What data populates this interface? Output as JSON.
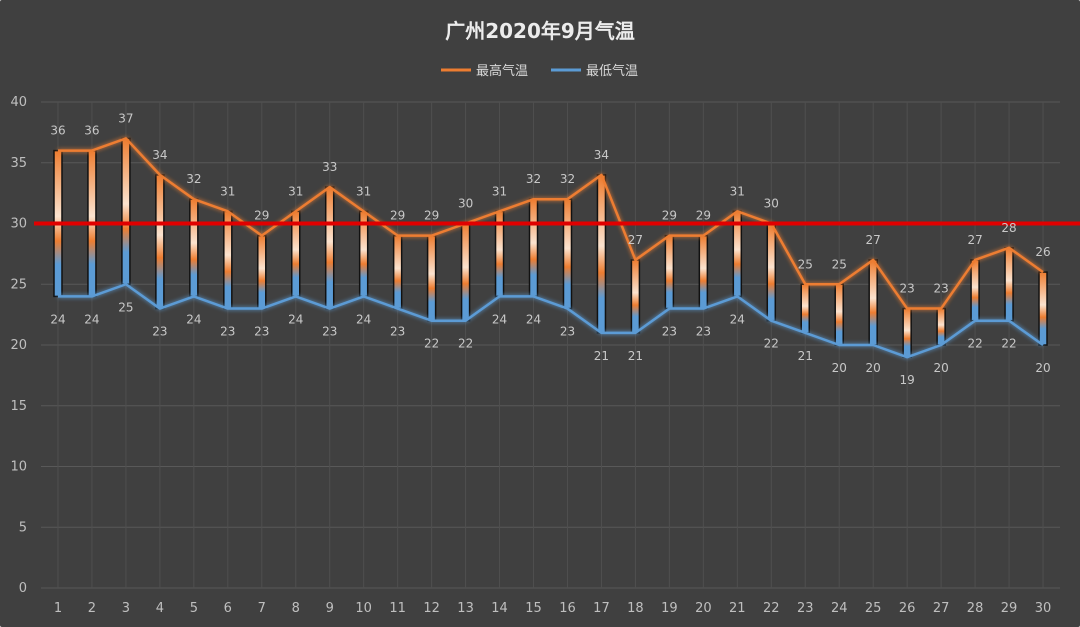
{
  "chart_data": {
    "type": "line",
    "title": "广州2020年9月气温",
    "categories": [
      "1",
      "2",
      "3",
      "4",
      "5",
      "6",
      "7",
      "8",
      "9",
      "10",
      "11",
      "12",
      "13",
      "14",
      "15",
      "16",
      "17",
      "18",
      "19",
      "20",
      "21",
      "22",
      "23",
      "24",
      "25",
      "26",
      "27",
      "28",
      "29",
      "30"
    ],
    "series": [
      {
        "name": "最高气温",
        "color": "#ed7d31",
        "values": [
          36,
          36,
          37,
          34,
          32,
          31,
          29,
          31,
          33,
          31,
          29,
          29,
          30,
          31,
          32,
          32,
          34,
          27,
          29,
          29,
          31,
          30,
          25,
          25,
          27,
          23,
          23,
          27,
          28,
          26
        ]
      },
      {
        "name": "最低气温",
        "color": "#5b9bd5",
        "values": [
          24,
          24,
          25,
          23,
          24,
          23,
          23,
          24,
          23,
          24,
          23,
          22,
          22,
          24,
          24,
          23,
          21,
          21,
          23,
          23,
          24,
          22,
          21,
          20,
          20,
          19,
          20,
          22,
          22,
          20
        ]
      }
    ],
    "ylim": [
      0,
      40
    ],
    "yticks": [
      0,
      5,
      10,
      15,
      20,
      25,
      30,
      35,
      40
    ],
    "grid": true,
    "legend_position": "top",
    "reference_line": {
      "value": 30,
      "color": "#e00000"
    },
    "xlabel": "",
    "ylabel": ""
  }
}
